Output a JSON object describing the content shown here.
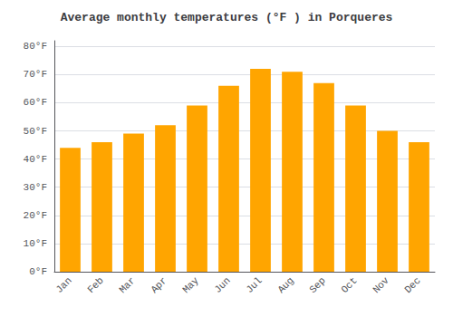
{
  "chart_data": {
    "type": "bar",
    "title": "Average monthly temperatures (°F ) in Porqueres",
    "categories": [
      "Jan",
      "Feb",
      "Mar",
      "Apr",
      "May",
      "Jun",
      "Jul",
      "Aug",
      "Sep",
      "Oct",
      "Nov",
      "Dec"
    ],
    "values": [
      44,
      46,
      49,
      52,
      59,
      66,
      72,
      71,
      67,
      59,
      50,
      46
    ],
    "color": "#FFA500",
    "ylim": [
      0,
      82
    ],
    "yticks": [
      {
        "value": 0,
        "label": "0°F"
      },
      {
        "value": 10,
        "label": "10°F"
      },
      {
        "value": 20,
        "label": "20°F"
      },
      {
        "value": 30,
        "label": "30°F"
      },
      {
        "value": 40,
        "label": "40°F"
      },
      {
        "value": 50,
        "label": "50°F"
      },
      {
        "value": 60,
        "label": "60°F"
      },
      {
        "value": 70,
        "label": "70°F"
      },
      {
        "value": 80,
        "label": "80°F"
      }
    ],
    "grid": true
  }
}
